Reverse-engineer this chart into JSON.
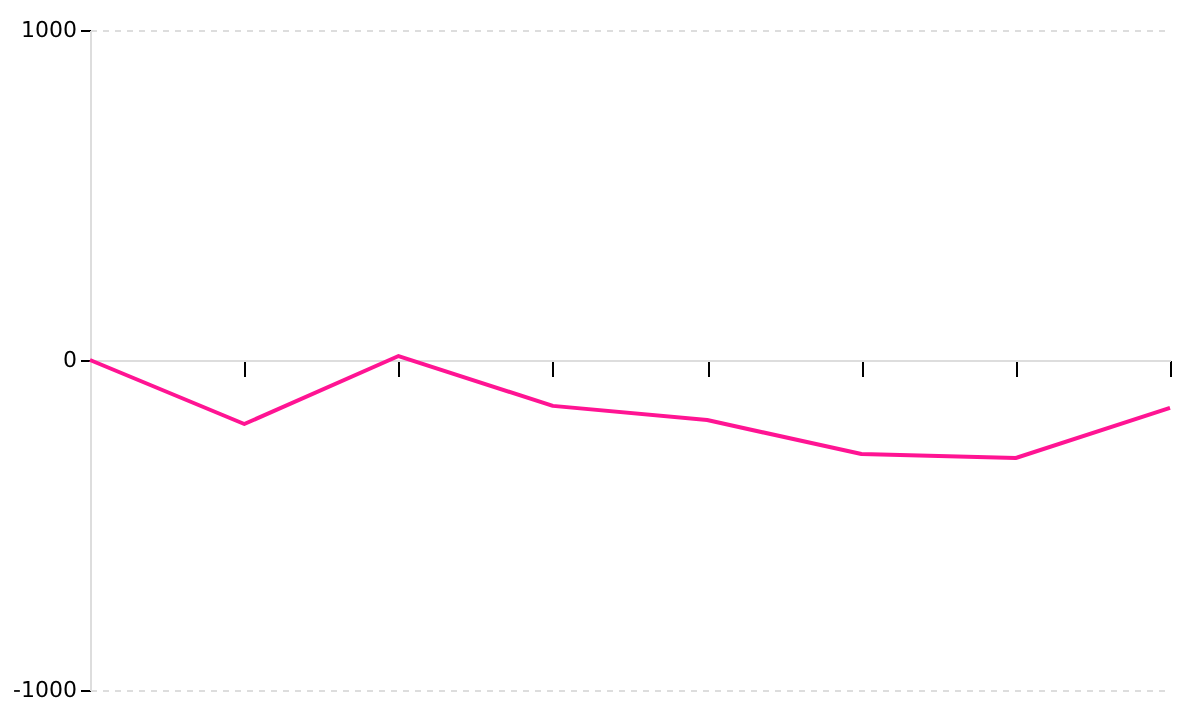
{
  "chart_data": {
    "type": "line",
    "categories": [
      null,
      null,
      null,
      null,
      null,
      null,
      null,
      null
    ],
    "series": [
      {
        "color": "#ff1493",
        "values": [
          0,
          -194,
          12,
          -139,
          -182,
          -285,
          -297,
          -145
        ]
      }
    ],
    "ylim": [
      -1000,
      1000
    ],
    "yticks": [
      -1000,
      0,
      1000
    ],
    "tick_labels": "y",
    "grid": "y",
    "line_style": "solid",
    "marker": "none"
  }
}
